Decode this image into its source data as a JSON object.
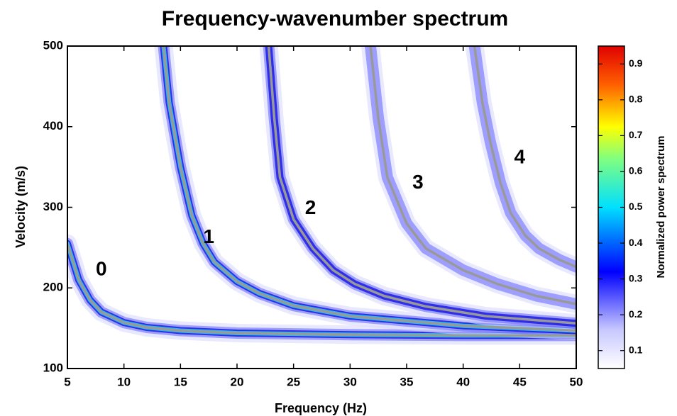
{
  "chart_data": {
    "type": "line",
    "title": "Frequency-wavenumber spectrum",
    "x_label": "Frequency (Hz)",
    "y_label": "Velocity (m/s)",
    "colorbar_label": "Normalized power spectrum",
    "xlim": [
      5,
      50
    ],
    "ylim": [
      100,
      500
    ],
    "xticks": [
      5,
      10,
      15,
      20,
      25,
      30,
      35,
      40,
      45,
      50
    ],
    "yticks": [
      100,
      200,
      300,
      400,
      500
    ],
    "clim": [
      0.05,
      0.95
    ],
    "cticks": [
      0.1,
      0.2,
      0.3,
      0.4,
      0.5,
      0.6,
      0.7,
      0.8,
      0.9
    ],
    "series": [
      {
        "name": "0",
        "color": "#999999",
        "x": [
          5,
          6,
          7,
          8,
          10,
          12,
          15,
          20,
          30,
          40,
          50
        ],
        "values": [
          255,
          210,
          185,
          170,
          157,
          151,
          147,
          144,
          142,
          141,
          141
        ]
      },
      {
        "name": "1",
        "color": "#999999",
        "x": [
          13.5,
          14,
          15,
          16,
          17,
          18,
          20,
          22,
          25,
          30,
          40,
          50
        ],
        "values": [
          500,
          430,
          350,
          290,
          255,
          232,
          208,
          193,
          178,
          165,
          153,
          147
        ]
      },
      {
        "name": "2",
        "color": "#999999",
        "x": [
          22.8,
          23.3,
          23.8,
          25,
          26.7,
          28.5,
          30.4,
          33,
          36.7,
          42,
          50
        ],
        "values": [
          500,
          410,
          337,
          285,
          249,
          222,
          205,
          190,
          177,
          165,
          156
        ]
      },
      {
        "name": "3",
        "color": "#999999",
        "x": [
          31.8,
          32.5,
          33.3,
          35,
          36.7,
          40,
          43,
          46.5,
          50
        ],
        "values": [
          500,
          410,
          337,
          280,
          249,
          222,
          205,
          190,
          180
        ]
      },
      {
        "name": "4",
        "color": "#999999",
        "x": [
          41,
          41.7,
          42.4,
          43.3,
          44.2,
          45.5,
          46.7,
          48.5,
          50
        ],
        "values": [
          500,
          430,
          381,
          330,
          293,
          265,
          249,
          235,
          226
        ]
      }
    ],
    "annotations": [
      {
        "text": "0",
        "x": 8,
        "y": 222
      },
      {
        "text": "1",
        "x": 17.5,
        "y": 262
      },
      {
        "text": "2",
        "x": 26.5,
        "y": 298
      },
      {
        "text": "3",
        "x": 36,
        "y": 330
      },
      {
        "text": "4",
        "x": 45,
        "y": 361
      }
    ]
  }
}
